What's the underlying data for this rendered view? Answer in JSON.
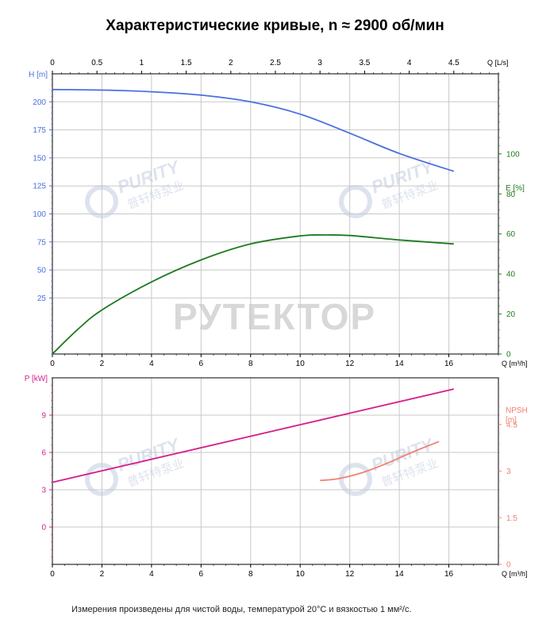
{
  "title": "Характеристические кривые, n ≈ 2900 об/мин",
  "footnote": "Измерения произведены для чистой воды, температурой 20°C и вязкостью 1 мм²/с.",
  "watermarks": {
    "brand": "PURITY",
    "brand_cn": "普轩特泵业",
    "main": "РУТЕКТОР"
  },
  "colors": {
    "head": "#4a6fe0",
    "efficiency": "#1f7a1f",
    "power": "#d41e8c",
    "npsh": "#f08070",
    "axis": "#000000",
    "grid": "#c8c8c8",
    "watermark": "#dde3ee"
  },
  "chart_data": [
    {
      "type": "line",
      "panel": "top",
      "x_top_axis": {
        "label": "Q [L/s]",
        "ticks": [
          "0",
          "0.5",
          "1",
          "1.5",
          "2",
          "2.5",
          "3",
          "3.5",
          "4",
          "4.5"
        ],
        "range": [
          0,
          5.0
        ]
      },
      "x_axis": {
        "label": "Q [m³/h]",
        "ticks": [
          "0",
          "2",
          "4",
          "6",
          "8",
          "10",
          "12",
          "14",
          "16"
        ],
        "range": [
          0,
          18
        ]
      },
      "y_left": {
        "label": "H [m]",
        "ticks": [
          "25",
          "50",
          "75",
          "100",
          "125",
          "150",
          "175",
          "200"
        ],
        "range": [
          -25,
          225
        ]
      },
      "y_right": {
        "label": "E [%]",
        "ticks": [
          "0",
          "20",
          "40",
          "60",
          "80",
          "100"
        ],
        "range": [
          0,
          140
        ]
      },
      "series": [
        {
          "name": "H [m]",
          "axis": "left",
          "x": [
            0,
            2,
            4,
            6,
            8,
            10,
            12,
            14,
            16.2
          ],
          "y": [
            211,
            210.5,
            209,
            206,
            200,
            189,
            172,
            154,
            138
          ]
        },
        {
          "name": "E [%]",
          "axis": "right",
          "x": [
            0,
            1,
            2,
            4,
            6,
            8,
            10,
            11,
            12,
            14,
            16.2
          ],
          "y": [
            0,
            12,
            22,
            36,
            47,
            55,
            59,
            59.5,
            59.2,
            57,
            55
          ]
        }
      ]
    },
    {
      "type": "line",
      "panel": "bottom",
      "x_axis": {
        "label": "Q [m³/h]",
        "ticks": [
          "0",
          "2",
          "4",
          "6",
          "8",
          "10",
          "12",
          "14",
          "16"
        ],
        "range": [
          0,
          18
        ]
      },
      "y_left": {
        "label": "P [kW]",
        "ticks": [
          "0",
          "3",
          "6",
          "9"
        ],
        "range": [
          -3,
          12
        ]
      },
      "y_right": {
        "label": "NPSH [m]",
        "ticks": [
          "0",
          "1.5",
          "3",
          "4.5"
        ],
        "range": [
          0,
          6
        ]
      },
      "series": [
        {
          "name": "P [kW]",
          "axis": "left",
          "x": [
            0,
            16.2
          ],
          "y": [
            3.6,
            11.1
          ]
        },
        {
          "name": "NPSH [m]",
          "axis": "right",
          "x": [
            10.8,
            11.5,
            12.5,
            13.5,
            14.5,
            15.6
          ],
          "y": [
            2.7,
            2.75,
            2.95,
            3.25,
            3.6,
            3.95
          ]
        }
      ]
    }
  ]
}
